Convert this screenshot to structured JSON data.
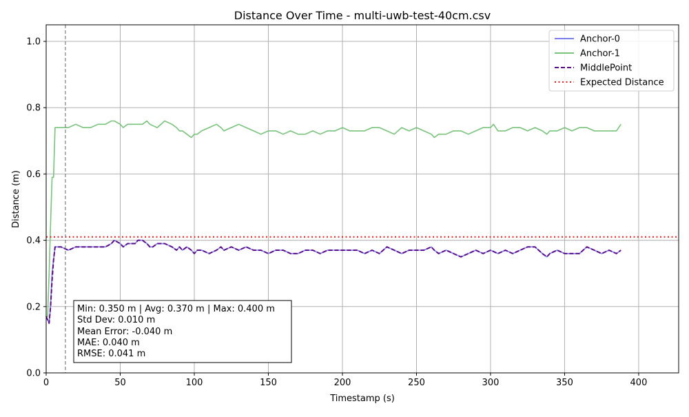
{
  "chart_data": {
    "type": "line",
    "title": "Distance Over Time - multi-uwb-test-40cm.csv",
    "xlabel": "Timestamp (s)",
    "ylabel": "Distance (m)",
    "xlim": [
      0,
      427
    ],
    "ylim": [
      0,
      1.05
    ],
    "x_ticks": [
      0,
      50,
      100,
      150,
      200,
      250,
      300,
      350,
      400
    ],
    "y_ticks": [
      "0.0",
      "0.2",
      "0.4",
      "0.6",
      "0.8",
      "1.0"
    ],
    "grid": true,
    "legend_position": "top-right",
    "series": [
      {
        "name": "Anchor-0",
        "style": "solid",
        "color": "#7b7bea",
        "x": [
          0,
          1,
          2,
          3,
          4,
          5,
          6,
          7,
          10,
          15,
          20,
          25,
          30,
          35,
          40,
          44,
          46,
          50,
          52,
          55,
          60,
          62,
          65,
          68,
          70,
          72,
          75,
          80,
          85,
          88,
          90,
          92,
          95,
          98,
          100,
          102,
          105,
          110,
          115,
          118,
          120,
          125,
          130,
          135,
          140,
          145,
          150,
          155,
          160,
          165,
          170,
          175,
          180,
          185,
          190,
          195,
          200,
          205,
          210,
          215,
          220,
          225,
          230,
          235,
          240,
          245,
          250,
          255,
          260,
          262,
          265,
          270,
          275,
          280,
          285,
          290,
          295,
          300,
          305,
          310,
          315,
          320,
          325,
          330,
          335,
          338,
          340,
          345,
          350,
          355,
          360,
          365,
          370,
          375,
          380,
          385,
          388
        ],
        "y": [
          0.17,
          0.16,
          0.15,
          0.2,
          0.3,
          0.34,
          0.38,
          0.38,
          0.38,
          0.37,
          0.38,
          0.38,
          0.38,
          0.38,
          0.38,
          0.39,
          0.4,
          0.39,
          0.38,
          0.39,
          0.39,
          0.4,
          0.4,
          0.39,
          0.38,
          0.38,
          0.39,
          0.39,
          0.38,
          0.37,
          0.38,
          0.37,
          0.38,
          0.37,
          0.36,
          0.37,
          0.37,
          0.36,
          0.37,
          0.38,
          0.37,
          0.38,
          0.37,
          0.38,
          0.37,
          0.37,
          0.36,
          0.37,
          0.37,
          0.36,
          0.36,
          0.37,
          0.37,
          0.36,
          0.37,
          0.37,
          0.37,
          0.37,
          0.37,
          0.36,
          0.37,
          0.36,
          0.38,
          0.37,
          0.36,
          0.37,
          0.37,
          0.37,
          0.38,
          0.37,
          0.36,
          0.37,
          0.36,
          0.35,
          0.36,
          0.37,
          0.36,
          0.37,
          0.36,
          0.37,
          0.36,
          0.37,
          0.38,
          0.38,
          0.36,
          0.35,
          0.36,
          0.37,
          0.36,
          0.36,
          0.36,
          0.38,
          0.37,
          0.36,
          0.37,
          0.36,
          0.37
        ]
      },
      {
        "name": "Anchor-1",
        "style": "solid",
        "color": "#79c27b",
        "x": [
          0,
          1,
          2,
          3,
          4,
          5,
          6,
          7,
          10,
          15,
          20,
          25,
          30,
          35,
          40,
          44,
          46,
          50,
          52,
          55,
          60,
          65,
          68,
          70,
          75,
          80,
          85,
          88,
          90,
          92,
          95,
          98,
          100,
          102,
          105,
          110,
          115,
          118,
          120,
          125,
          130,
          135,
          140,
          145,
          150,
          155,
          160,
          165,
          170,
          175,
          180,
          185,
          190,
          195,
          200,
          205,
          210,
          215,
          220,
          225,
          230,
          235,
          240,
          245,
          250,
          255,
          260,
          262,
          265,
          270,
          275,
          280,
          285,
          290,
          295,
          300,
          302,
          305,
          310,
          315,
          320,
          325,
          330,
          335,
          338,
          340,
          345,
          350,
          355,
          360,
          365,
          370,
          375,
          380,
          385,
          388
        ],
        "y": [
          0.17,
          0.17,
          0.3,
          0.45,
          0.59,
          0.59,
          0.74,
          0.74,
          0.74,
          0.74,
          0.75,
          0.74,
          0.74,
          0.75,
          0.75,
          0.76,
          0.76,
          0.75,
          0.74,
          0.75,
          0.75,
          0.75,
          0.76,
          0.75,
          0.74,
          0.76,
          0.75,
          0.74,
          0.73,
          0.73,
          0.72,
          0.71,
          0.72,
          0.72,
          0.73,
          0.74,
          0.75,
          0.74,
          0.73,
          0.74,
          0.75,
          0.74,
          0.73,
          0.72,
          0.73,
          0.73,
          0.72,
          0.73,
          0.72,
          0.72,
          0.73,
          0.72,
          0.73,
          0.73,
          0.74,
          0.73,
          0.73,
          0.73,
          0.74,
          0.74,
          0.73,
          0.72,
          0.74,
          0.73,
          0.74,
          0.73,
          0.72,
          0.71,
          0.72,
          0.72,
          0.73,
          0.73,
          0.72,
          0.73,
          0.74,
          0.74,
          0.75,
          0.73,
          0.73,
          0.74,
          0.74,
          0.73,
          0.74,
          0.73,
          0.72,
          0.73,
          0.73,
          0.74,
          0.73,
          0.74,
          0.74,
          0.73,
          0.73,
          0.73,
          0.73,
          0.75
        ]
      },
      {
        "name": "MiddlePoint",
        "style": "dashed",
        "color": "#5c0c86",
        "x": [
          0,
          1,
          2,
          3,
          4,
          5,
          6,
          7,
          10,
          15,
          20,
          25,
          30,
          35,
          40,
          44,
          46,
          50,
          52,
          55,
          60,
          62,
          65,
          68,
          70,
          72,
          75,
          80,
          85,
          88,
          90,
          92,
          95,
          98,
          100,
          102,
          105,
          110,
          115,
          118,
          120,
          125,
          130,
          135,
          140,
          145,
          150,
          155,
          160,
          165,
          170,
          175,
          180,
          185,
          190,
          195,
          200,
          205,
          210,
          215,
          220,
          225,
          230,
          235,
          240,
          245,
          250,
          255,
          260,
          262,
          265,
          270,
          275,
          280,
          285,
          290,
          295,
          300,
          305,
          310,
          315,
          320,
          325,
          330,
          335,
          338,
          340,
          345,
          350,
          355,
          360,
          365,
          370,
          375,
          380,
          385,
          388
        ],
        "y": [
          0.17,
          0.16,
          0.15,
          0.2,
          0.28,
          0.34,
          0.38,
          0.38,
          0.38,
          0.37,
          0.38,
          0.38,
          0.38,
          0.38,
          0.38,
          0.39,
          0.4,
          0.39,
          0.38,
          0.39,
          0.39,
          0.4,
          0.4,
          0.39,
          0.38,
          0.38,
          0.39,
          0.39,
          0.38,
          0.37,
          0.38,
          0.37,
          0.38,
          0.37,
          0.36,
          0.37,
          0.37,
          0.36,
          0.37,
          0.38,
          0.37,
          0.38,
          0.37,
          0.38,
          0.37,
          0.37,
          0.36,
          0.37,
          0.37,
          0.36,
          0.36,
          0.37,
          0.37,
          0.36,
          0.37,
          0.37,
          0.37,
          0.37,
          0.37,
          0.36,
          0.37,
          0.36,
          0.38,
          0.37,
          0.36,
          0.37,
          0.37,
          0.37,
          0.38,
          0.37,
          0.36,
          0.37,
          0.36,
          0.35,
          0.36,
          0.37,
          0.36,
          0.37,
          0.36,
          0.37,
          0.36,
          0.37,
          0.38,
          0.38,
          0.36,
          0.35,
          0.36,
          0.37,
          0.36,
          0.36,
          0.36,
          0.38,
          0.37,
          0.36,
          0.37,
          0.36,
          0.37
        ]
      },
      {
        "name": "Expected Distance",
        "style": "dotted",
        "color": "#e31a1c",
        "x": [
          0,
          427
        ],
        "y": [
          0.41,
          0.41
        ]
      }
    ],
    "vertical_marker": {
      "x": 13,
      "color": "#666666",
      "style": "dashed"
    },
    "stats_box": {
      "lines": [
        "Min: 0.350 m | Avg: 0.370 m | Max: 0.400 m",
        "Std Dev: 0.010 m",
        "Mean Error: -0.040 m",
        "MAE: 0.040 m",
        "RMSE: 0.041 m"
      ]
    }
  }
}
